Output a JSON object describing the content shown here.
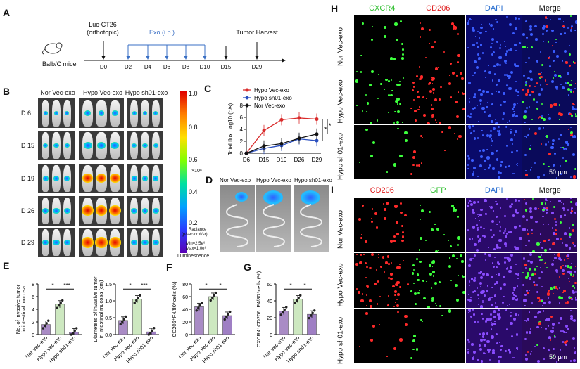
{
  "panels": {
    "A": "A",
    "B": "B",
    "C": "C",
    "D": "D",
    "E": "E",
    "F": "F",
    "G": "G",
    "H": "H",
    "I": "I"
  },
  "timeline": {
    "mouse_label": "Balb/C mice",
    "inj_label_1": "Luc-CT26",
    "inj_label_2": "(orthotopic)",
    "exo_label": "Exo (i.p.)",
    "harvest_label": "Tumor Harvest",
    "days": [
      "D0",
      "D2",
      "D4",
      "D6",
      "D8",
      "D10",
      "D15",
      "D29"
    ],
    "exo_color": "#3a6fc4"
  },
  "ivis": {
    "groups": [
      "Nor Vec-exo",
      "Hypo Vec-exo",
      "Hypo sh01-exo"
    ],
    "days": [
      "D 6",
      "D 15",
      "D 19",
      "D 26",
      "D 29"
    ],
    "scale_ticks": [
      "1.0",
      "0.8",
      "0.6",
      "0.4",
      "0.2"
    ],
    "scale_unit": "×10⁸",
    "radiance_1": "Radiance",
    "radiance_2": "(p/sec/cm²/sr)",
    "min_label": "Min=2.5e⁶",
    "max_label": "Max=1.0e⁸",
    "lum_label": "Luminescence"
  },
  "gut": {
    "groups": [
      "Nor Vec-exo",
      "Hypo Vec-exo",
      "Hypo sh01-exo"
    ]
  },
  "chart_data": [
    {
      "type": "line",
      "panel": "C",
      "title": "",
      "xlabel": "",
      "ylabel": "Total flux Log10 (p/s)",
      "categories": [
        "D6",
        "D15",
        "D19",
        "D26",
        "D29"
      ],
      "y_ticks": [
        "0",
        "2",
        "4",
        "6",
        "8"
      ],
      "ylim": [
        0,
        8
      ],
      "series": [
        {
          "name": "Hypo Vec-exo",
          "color": "#d92b2b",
          "values": [
            0,
            3.8,
            5.6,
            5.9,
            5.7
          ]
        },
        {
          "name": "Hypo sh01-exo",
          "color": "#2a4fbf",
          "values": [
            0,
            0.8,
            1.3,
            2.4,
            2.1
          ]
        },
        {
          "name": "Nor Vec-exo",
          "color": "#111111",
          "values": [
            0,
            1.2,
            1.6,
            2.5,
            3.2
          ]
        }
      ],
      "sig": [
        "*",
        "*"
      ]
    },
    {
      "type": "bar",
      "panel": "E1",
      "ylabel_1": "No. of invasive tumor",
      "ylabel_2": "in intestinal mucosa",
      "categories": [
        "Nor Vec-exo",
        "Hypo Vec-exo",
        "Hypo sh01-exo"
      ],
      "colors": [
        "#a98bc5",
        "#cde8c0",
        "#9f7fc4"
      ],
      "values": [
        1.6,
        4.8,
        0.4
      ],
      "ylim": [
        0,
        8
      ],
      "y_ticks": [
        "0",
        "2",
        "4",
        "6",
        "8"
      ],
      "sig": [
        "*",
        "***"
      ]
    },
    {
      "type": "bar",
      "panel": "E2",
      "ylabel_1": "Diameters of invasive tumor",
      "ylabel_2": "in intestinal mucosa (cm)",
      "categories": [
        "Nor Vec-exo",
        "Hypo Vec-exo",
        "Hypo sh01-exo"
      ],
      "colors": [
        "#a98bc5",
        "#cde8c0",
        "#9f7fc4"
      ],
      "values": [
        0.42,
        1.05,
        0.08
      ],
      "ylim": [
        0,
        1.5
      ],
      "y_ticks": [
        "0.0",
        "0.5",
        "1.0",
        "1.5"
      ],
      "sig": [
        "*",
        "***"
      ]
    },
    {
      "type": "bar",
      "panel": "F",
      "ylabel": "CD206⁺F4/80⁺cells (%)",
      "categories": [
        "Nor Vec-exo",
        "Hypo Vec-exo",
        "Hypo sh01-exo"
      ],
      "colors": [
        "#a98bc5",
        "#cde8c0",
        "#9f7fc4"
      ],
      "values": [
        44,
        60,
        30
      ],
      "ylim": [
        0,
        80
      ],
      "y_ticks": [
        "0",
        "20",
        "40",
        "60",
        "80"
      ],
      "sig": [
        "*",
        "*"
      ]
    },
    {
      "type": "bar",
      "panel": "G",
      "ylabel": "CXCR4⁺CD206⁺F4/80⁺cells (%)",
      "categories": [
        "Nor Vec-exo",
        "Hypo Vec-exo",
        "Hypo sh01-exo"
      ],
      "colors": [
        "#a98bc5",
        "#cde8c0",
        "#9f7fc4"
      ],
      "values": [
        28,
        42,
        24
      ],
      "ylim": [
        0,
        60
      ],
      "y_ticks": [
        "0",
        "20",
        "40",
        "60"
      ],
      "sig": [
        "*",
        "*"
      ]
    }
  ],
  "H": {
    "headers": [
      "CXCR4",
      "CD206",
      "DAPI",
      "Merge"
    ],
    "header_colors": [
      "#2fbf2f",
      "#e02020",
      "#2a6fd0",
      "#111111"
    ],
    "rows": [
      "Nor Vec-exo",
      "Hypo Vec-exo",
      "Hypo sh01-exo"
    ],
    "scale": "50 μm"
  },
  "I": {
    "headers": [
      "CD206",
      "GFP",
      "DAPI",
      "Merge"
    ],
    "header_colors": [
      "#e02020",
      "#2fbf2f",
      "#2a6fd0",
      "#111111"
    ],
    "rows": [
      "Nor Vec-exo",
      "Hypo Vec-exo",
      "Hypo sh01-exo"
    ],
    "scale": "50 μm"
  }
}
